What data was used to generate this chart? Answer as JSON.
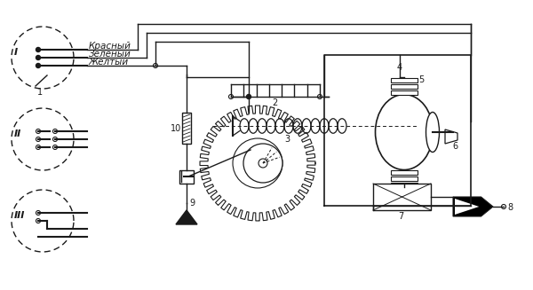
{
  "bg_color": "#ffffff",
  "line_color": "#1a1a1a",
  "labels": {
    "krasniy": "Красный",
    "zeleniy": "Зеленый",
    "zheltiy": "Желтый",
    "I": "I",
    "II": "II",
    "III": "III",
    "num1": "1",
    "num2": "2",
    "num3": "3",
    "num4": "4",
    "num5": "5",
    "num6": "6",
    "num7": "7",
    "num8": "8",
    "num9": "9",
    "num10": "10"
  },
  "figsize": [
    6.0,
    3.27
  ],
  "dpi": 100
}
